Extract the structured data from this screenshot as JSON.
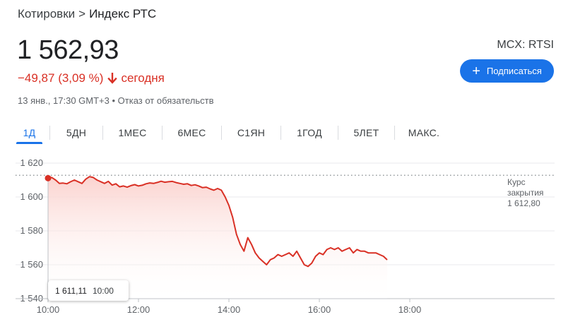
{
  "breadcrumb": {
    "parent": "Котировки",
    "separator": ">",
    "current": "Индекс РТС"
  },
  "quote": {
    "price": "1 562,93",
    "change": "−49,87 (3,09 %)",
    "change_period": "сегодня",
    "meta": "13 янв., 17:30 GMT+3 • Отказ от обязательств",
    "exchange": "MCX: RTSI"
  },
  "subscribe_label": "Подписаться",
  "tabs": [
    "1Д",
    "5ДН",
    "1МЕС",
    "6МЕС",
    "С1ЯН",
    "1ГОД",
    "5ЛЕТ",
    "МАКС."
  ],
  "active_tab": "1Д",
  "tooltip": {
    "value": "1 611,11",
    "time": "10:00"
  },
  "prev_close": {
    "label_line1": "Курс",
    "label_line2": "закрытия",
    "value": "1 612,80"
  },
  "colors": {
    "down": "#d93025",
    "accent": "#1a73e8"
  },
  "chart_data": {
    "type": "area",
    "title": "",
    "xlabel": "",
    "ylabel": "",
    "x_ticks": [
      "10:00",
      "12:00",
      "14:00",
      "16:00",
      "18:00"
    ],
    "y_ticks": [
      1540,
      1560,
      1580,
      1600,
      1620
    ],
    "y_tick_labels": [
      "1 540",
      "1 560",
      "1 580",
      "1 600",
      "1 620"
    ],
    "xlim_minutes": [
      600,
      1140
    ],
    "ylim": [
      1540,
      1620
    ],
    "reference_line": 1612.8,
    "grid": "horizontal",
    "series": [
      {
        "x": [
          600,
          605,
          610,
          615,
          620,
          625,
          630,
          635,
          640,
          645,
          650,
          655,
          660,
          665,
          670,
          675,
          680,
          685,
          690,
          695,
          700,
          705,
          710,
          715,
          720,
          725,
          730,
          735,
          740,
          745,
          750,
          755,
          760,
          765,
          770,
          775,
          780,
          785,
          790,
          795,
          800,
          805,
          810,
          815,
          820,
          825,
          830,
          835,
          840,
          845,
          850,
          855,
          860,
          865,
          870,
          875,
          880,
          885,
          890,
          895,
          900,
          905,
          910,
          915,
          920,
          925,
          930,
          935,
          940,
          945,
          950,
          955,
          960,
          965,
          970,
          975,
          980,
          985,
          990,
          995,
          1000,
          1005,
          1010,
          1015,
          1020,
          1025,
          1030,
          1035,
          1040,
          1045,
          1050
        ],
        "y": [
          1611.1,
          1611.5,
          1610,
          1608,
          1608.2,
          1607.8,
          1609,
          1610,
          1609,
          1608,
          1610.5,
          1612,
          1611.5,
          1610,
          1609,
          1608,
          1609.2,
          1607,
          1607.8,
          1606,
          1606.5,
          1605.8,
          1606.7,
          1607.3,
          1606.5,
          1606.9,
          1607.8,
          1608.3,
          1608,
          1608.6,
          1609.3,
          1608.7,
          1609,
          1609.2,
          1608.5,
          1608,
          1607.5,
          1607.8,
          1606.8,
          1607.2,
          1606.5,
          1605.5,
          1605.8,
          1604.8,
          1604,
          1605,
          1604,
          1600,
          1595,
          1588,
          1578,
          1572,
          1568,
          1576,
          1572,
          1567,
          1564,
          1562,
          1560,
          1563,
          1564,
          1566,
          1565,
          1566,
          1567,
          1565,
          1568,
          1564,
          1560,
          1559,
          1561,
          1565,
          1567,
          1566,
          1569,
          1570,
          1569,
          1570,
          1568,
          1569,
          1570,
          1567,
          1569,
          1568,
          1568,
          1567,
          1567,
          1567,
          1566,
          1565,
          1562.9
        ]
      }
    ]
  }
}
